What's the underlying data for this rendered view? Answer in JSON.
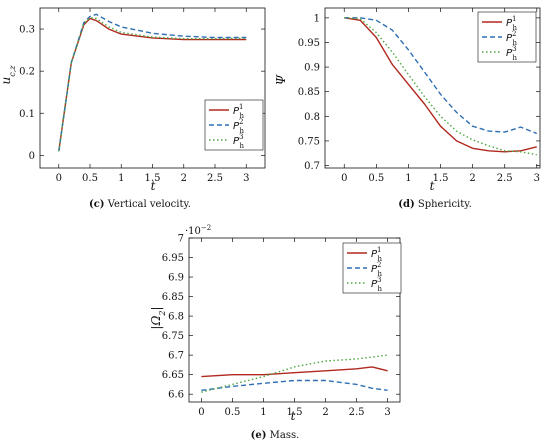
{
  "figure": {
    "panels": [
      {
        "id": "c",
        "caption_tag": "(c)",
        "caption_text": " Vertical velocity.",
        "ylabel": "u",
        "ylabel_sub": "c,z",
        "xlabel": "t",
        "multiplier": "",
        "x_ticks": [
          "0",
          "0.5",
          "1",
          "1.5",
          "2",
          "2.5",
          "3"
        ],
        "y_ticks": [
          "0",
          "0.1",
          "0.2",
          "0.3"
        ],
        "legend": [
          {
            "base": "P",
            "sub": "h",
            "sup": "1"
          },
          {
            "base": "P",
            "sub": "h",
            "sup": "2"
          },
          {
            "base": "P",
            "sub": "h",
            "sup": "3"
          }
        ]
      },
      {
        "id": "d",
        "caption_tag": "(d)",
        "caption_text": " Sphericity.",
        "ylabel": "Ψ",
        "ylabel_sub": "",
        "xlabel": "t",
        "multiplier": "",
        "x_ticks": [
          "0",
          "0.5",
          "1",
          "1.5",
          "2",
          "2.5",
          "3"
        ],
        "y_ticks": [
          "0.7",
          "0.75",
          "0.8",
          "0.85",
          "0.9",
          "0.95",
          "1"
        ],
        "legend": [
          {
            "base": "P",
            "sub": "h",
            "sup": "1"
          },
          {
            "base": "P",
            "sub": "h",
            "sup": "2"
          },
          {
            "base": "P",
            "sub": "h",
            "sup": "3"
          }
        ]
      },
      {
        "id": "e",
        "caption_tag": "(e)",
        "caption_text": " Mass.",
        "ylabel": "|Ω",
        "ylabel_sub": "2",
        "ylabel_close": "|",
        "xlabel": "t",
        "multiplier": "·10",
        "multiplier_exp": "−2",
        "x_ticks": [
          "0",
          "0.5",
          "1",
          "1.5",
          "2",
          "2.5",
          "3"
        ],
        "y_ticks": [
          "6.6",
          "6.65",
          "6.7",
          "6.75",
          "6.8",
          "6.85",
          "6.9",
          "6.95",
          "7"
        ],
        "legend": [
          {
            "base": "P",
            "sub": "h",
            "sup": "1"
          },
          {
            "base": "P",
            "sub": "h",
            "sup": "2"
          },
          {
            "base": "P",
            "sub": "h",
            "sup": "3"
          }
        ]
      }
    ],
    "series_colors": [
      "#b0281e",
      "#2f6fb3",
      "#4aa83c"
    ],
    "series_styles": [
      "solid",
      "dashed",
      "dotted"
    ]
  },
  "chart_data": [
    {
      "type": "line",
      "xlabel": "t",
      "ylabel": "u_c,z",
      "xlim": [
        -0.3,
        3.3
      ],
      "ylim": [
        -0.03,
        0.35
      ],
      "x": [
        0,
        0.2,
        0.4,
        0.5,
        0.6,
        0.8,
        1.0,
        1.5,
        2.0,
        2.5,
        3.0
      ],
      "series": [
        {
          "name": "P_h^1",
          "values": [
            0.01,
            0.22,
            0.31,
            0.325,
            0.32,
            0.3,
            0.288,
            0.279,
            0.275,
            0.275,
            0.275
          ]
        },
        {
          "name": "P_h^2",
          "values": [
            0.01,
            0.22,
            0.315,
            0.33,
            0.335,
            0.318,
            0.305,
            0.29,
            0.283,
            0.28,
            0.28
          ]
        },
        {
          "name": "P_h^3",
          "values": [
            0.01,
            0.22,
            0.312,
            0.327,
            0.325,
            0.305,
            0.292,
            0.281,
            0.277,
            0.277,
            0.278
          ]
        }
      ]
    },
    {
      "type": "line",
      "xlabel": "t",
      "ylabel": "Ψ",
      "xlim": [
        -0.3,
        3.05
      ],
      "ylim": [
        0.695,
        1.02
      ],
      "x": [
        0,
        0.25,
        0.5,
        0.75,
        1.0,
        1.25,
        1.5,
        1.75,
        2.0,
        2.25,
        2.5,
        2.75,
        3.0
      ],
      "series": [
        {
          "name": "P_h^1",
          "values": [
            1.0,
            0.995,
            0.96,
            0.905,
            0.865,
            0.825,
            0.78,
            0.75,
            0.735,
            0.73,
            0.728,
            0.73,
            0.738
          ]
        },
        {
          "name": "P_h^2",
          "values": [
            1.0,
            1.0,
            0.995,
            0.975,
            0.935,
            0.89,
            0.845,
            0.808,
            0.78,
            0.77,
            0.768,
            0.778,
            0.765
          ]
        },
        {
          "name": "P_h^3",
          "values": [
            1.0,
            0.998,
            0.97,
            0.93,
            0.885,
            0.84,
            0.8,
            0.77,
            0.752,
            0.74,
            0.73,
            0.728,
            0.722
          ]
        }
      ]
    },
    {
      "type": "line",
      "xlabel": "t",
      "ylabel": "|Ω_2|",
      "multiplier": "10^-2",
      "xlim": [
        -0.2,
        3.2
      ],
      "ylim": [
        6.58,
        7.0
      ],
      "x": [
        0,
        0.5,
        1.0,
        1.5,
        2.0,
        2.5,
        2.75,
        3.0
      ],
      "series": [
        {
          "name": "P_h^1",
          "values": [
            6.645,
            6.65,
            6.65,
            6.655,
            6.66,
            6.665,
            6.67,
            6.66
          ]
        },
        {
          "name": "P_h^2",
          "values": [
            6.61,
            6.62,
            6.628,
            6.635,
            6.635,
            6.625,
            6.615,
            6.61
          ]
        },
        {
          "name": "P_h^3",
          "values": [
            6.605,
            6.625,
            6.645,
            6.67,
            6.685,
            6.69,
            6.695,
            6.7
          ]
        }
      ]
    }
  ]
}
